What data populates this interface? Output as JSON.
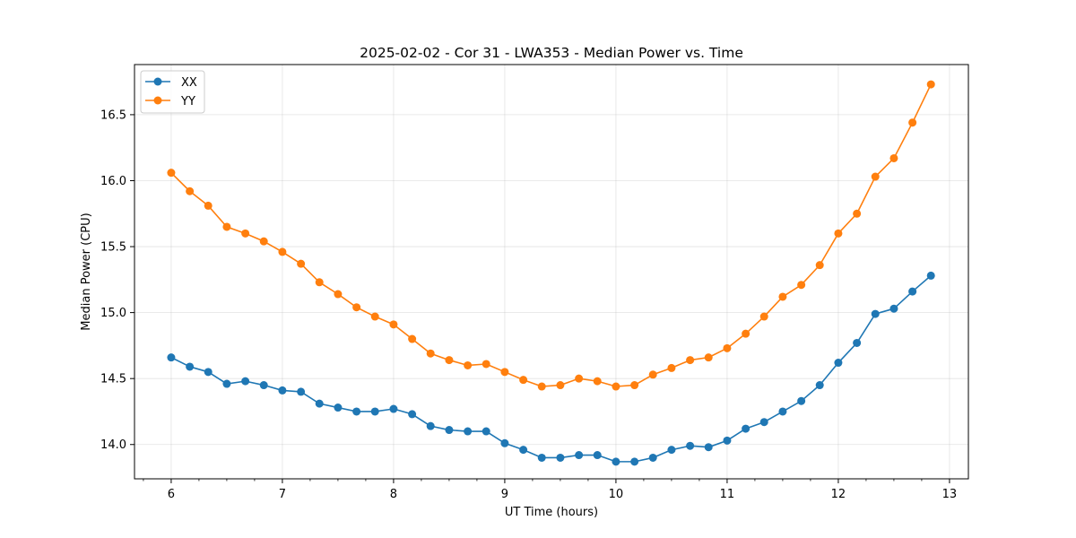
{
  "chart_data": {
    "type": "line",
    "title": "2025-02-02 - Cor 31 - LWA353 - Median Power vs. Time",
    "xlabel": "UT Time (hours)",
    "ylabel": "Median Power (CPU)",
    "xlim": [
      5.67,
      13.17
    ],
    "ylim": [
      13.74,
      16.88
    ],
    "xticks": [
      6,
      7,
      8,
      9,
      10,
      11,
      12,
      13
    ],
    "xtick_labels": [
      "6",
      "7",
      "8",
      "9",
      "10",
      "11",
      "12",
      "13"
    ],
    "xminor_step": 0.25,
    "yticks": [
      14.0,
      14.5,
      15.0,
      15.5,
      16.0,
      16.5
    ],
    "ytick_labels": [
      "14.0",
      "14.5",
      "15.0",
      "15.5",
      "16.0",
      "16.5"
    ],
    "grid": true,
    "legend_position": "top-left",
    "x": [
      6.0,
      6.167,
      6.333,
      6.5,
      6.667,
      6.833,
      7.0,
      7.167,
      7.333,
      7.5,
      7.667,
      7.833,
      8.0,
      8.167,
      8.333,
      8.5,
      8.667,
      8.833,
      9.0,
      9.167,
      9.333,
      9.5,
      9.667,
      9.833,
      10.0,
      10.167,
      10.333,
      10.5,
      10.667,
      10.833,
      11.0,
      11.167,
      11.333,
      11.5,
      11.667,
      11.833,
      12.0,
      12.167,
      12.333,
      12.5,
      12.667,
      12.833
    ],
    "series": [
      {
        "name": "XX",
        "color": "#1f77b4",
        "values": [
          14.66,
          14.59,
          14.55,
          14.46,
          14.48,
          14.45,
          14.41,
          14.4,
          14.31,
          14.28,
          14.25,
          14.25,
          14.27,
          14.23,
          14.14,
          14.11,
          14.1,
          14.1,
          14.01,
          13.96,
          13.9,
          13.9,
          13.92,
          13.92,
          13.87,
          13.87,
          13.9,
          13.96,
          13.99,
          13.98,
          14.03,
          14.12,
          14.17,
          14.25,
          14.33,
          14.45,
          14.62,
          14.77,
          14.99,
          15.03,
          15.16,
          15.28
        ]
      },
      {
        "name": "YY",
        "color": "#ff7f0e",
        "values": [
          16.06,
          15.92,
          15.81,
          15.65,
          15.6,
          15.54,
          15.46,
          15.37,
          15.23,
          15.14,
          15.04,
          14.97,
          14.91,
          14.8,
          14.69,
          14.64,
          14.6,
          14.61,
          14.55,
          14.49,
          14.44,
          14.45,
          14.5,
          14.48,
          14.44,
          14.45,
          14.53,
          14.58,
          14.64,
          14.66,
          14.73,
          14.84,
          14.97,
          15.12,
          15.21,
          15.36,
          15.6,
          15.75,
          16.03,
          16.17,
          16.44,
          16.73
        ]
      }
    ]
  }
}
